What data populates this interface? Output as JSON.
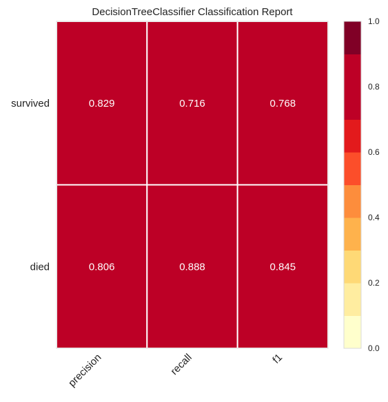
{
  "chart_data": {
    "type": "heatmap",
    "title": "DecisionTreeClassifier Classification Report",
    "columns": [
      "precision",
      "recall",
      "f1"
    ],
    "rows": [
      "survived",
      "died"
    ],
    "values": [
      [
        0.829,
        0.716,
        0.768
      ],
      [
        0.806,
        0.888,
        0.845
      ]
    ],
    "cell_labels": [
      [
        "0.829",
        "0.716",
        "0.768"
      ],
      [
        "0.806",
        "0.888",
        "0.845"
      ]
    ],
    "colorbar": {
      "min": 0.0,
      "max": 1.0,
      "ticks": [
        "0.0",
        "0.2",
        "0.4",
        "0.6",
        "0.8",
        "1.0"
      ],
      "tick_values": [
        0.0,
        0.2,
        0.4,
        0.6,
        0.8,
        1.0
      ],
      "bins": 10,
      "colors": [
        "#ffffcc",
        "#ffeda0",
        "#fed976",
        "#feb24c",
        "#fd8d3c",
        "#fc4e2a",
        "#e31a1c",
        "#bd0026",
        "#bd0026",
        "#800026"
      ]
    },
    "grid": true
  }
}
